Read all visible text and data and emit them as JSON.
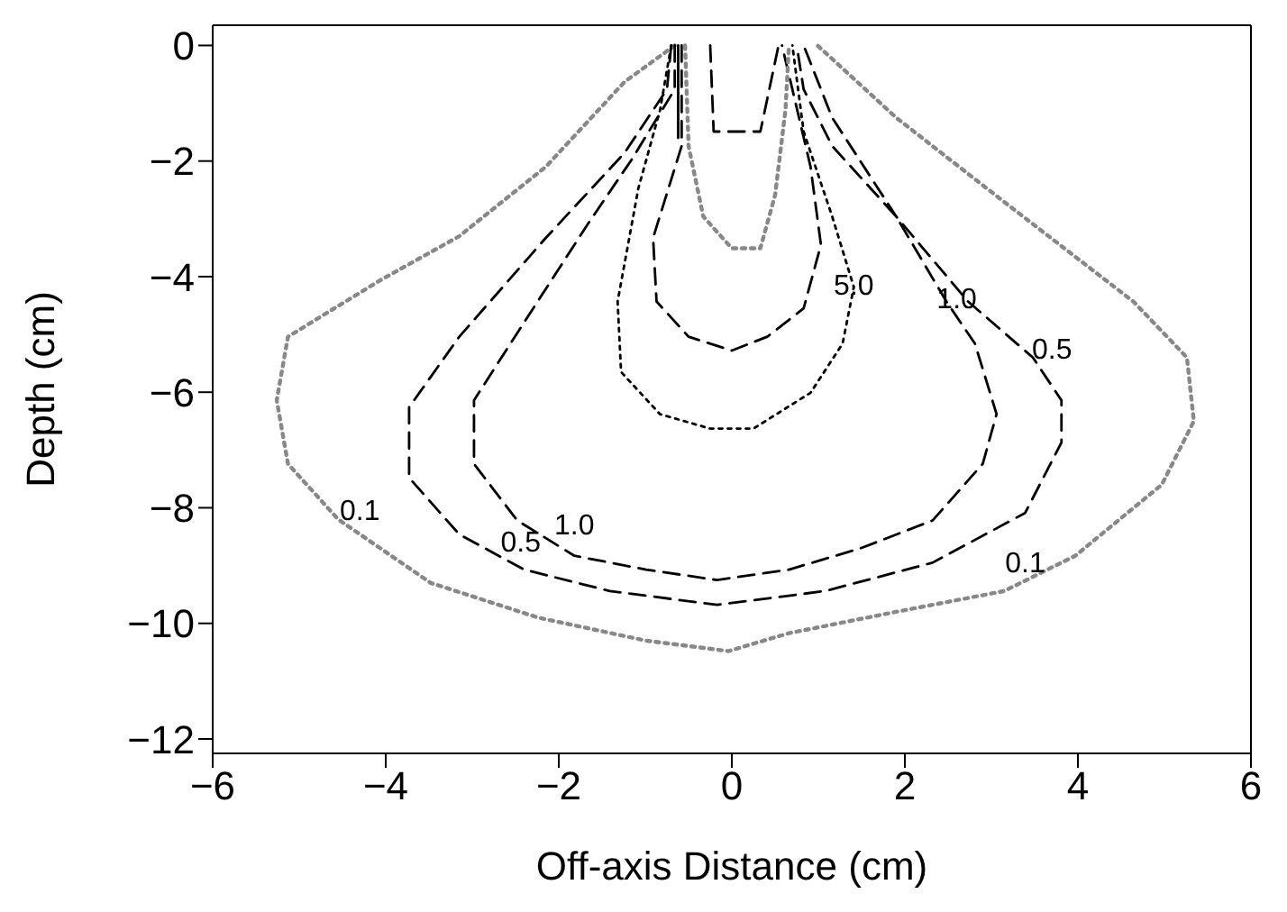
{
  "chart_data": {
    "type": "line",
    "xlabel": "Off-axis Distance (cm)",
    "ylabel": "Depth (cm)",
    "xlim": [
      -6,
      6
    ],
    "xticks": [
      -6,
      -4,
      -2,
      0,
      2,
      4,
      6
    ],
    "ylim": [
      -12.25,
      0.35
    ],
    "yticks": [
      -12,
      -10,
      -8,
      -6,
      -4,
      -2,
      0
    ],
    "marker": "none",
    "series": [
      {
        "color": "#888888",
        "line_style": "dotted",
        "x": [
          -0.66,
          -1.24,
          -2.15,
          -3.15,
          -4.06,
          -5.13,
          -5.26,
          -5.13,
          -4.55,
          -3.48,
          -2.24,
          -0.99,
          -0.04,
          0.66,
          1.9,
          3.15,
          3.97,
          4.97,
          5.34,
          5.26,
          4.64,
          3.15,
          1.9,
          0.99
        ],
        "values": [
          0,
          -0.63,
          -2.1,
          -3.3,
          -4.06,
          -5.04,
          -6.14,
          -7.24,
          -8.2,
          -9.3,
          -9.9,
          -10.3,
          -10.48,
          -10.17,
          -9.8,
          -9.44,
          -8.83,
          -7.6,
          -6.5,
          -5.4,
          -4.43,
          -2.71,
          -1.25,
          0
        ]
      },
      {
        "color": "#000000",
        "line_style": "dashed",
        "x": [
          -0.7,
          -0.75,
          -1.24,
          -2.15,
          -3.15,
          -3.73,
          -3.73,
          -3.15,
          -2.4,
          -1.41,
          -0.17,
          1.08,
          2.32,
          3.39,
          3.81,
          3.81,
          3.48,
          2.73,
          1.9,
          1.16,
          0.83
        ],
        "values": [
          0,
          -0.76,
          -1.86,
          -3.33,
          -5.04,
          -6.26,
          -7.48,
          -8.46,
          -9.07,
          -9.44,
          -9.68,
          -9.44,
          -8.95,
          -8.09,
          -6.87,
          -6.14,
          -5.4,
          -4.43,
          -2.96,
          -1.25,
          0
        ]
      },
      {
        "color": "#000000",
        "line_style": "dashed",
        "x": [
          -0.66,
          -0.66,
          -1.16,
          -1.66,
          -2.4,
          -2.98,
          -2.98,
          -2.48,
          -1.82,
          -0.99,
          -0.17,
          0.66,
          1.49,
          2.32,
          2.9,
          3.06,
          2.81,
          2.48,
          1.9,
          1.16,
          0.83,
          0.75
        ],
        "values": [
          0,
          -0.76,
          -1.98,
          -3.08,
          -4.79,
          -6.14,
          -7.24,
          -8.22,
          -8.83,
          -9.07,
          -9.25,
          -9.07,
          -8.7,
          -8.22,
          -7.24,
          -6.38,
          -5.16,
          -4.43,
          -2.96,
          -1.74,
          -0.76,
          0
        ]
      },
      {
        "color": "#000000",
        "line_style": "dotted",
        "x": [
          -0.7,
          -0.83,
          -1.08,
          -1.32,
          -1.28,
          -0.83,
          -0.25,
          0.25,
          0.91,
          1.28,
          1.41,
          1.16,
          0.83,
          0.7
        ],
        "values": [
          0,
          -1.12,
          -2.47,
          -4.43,
          -5.65,
          -6.38,
          -6.63,
          -6.63,
          -6.01,
          -5.16,
          -4.18,
          -2.96,
          -1.49,
          0
        ]
      },
      {
        "color": "#000000",
        "line_style": "dashed",
        "x": [
          -0.58,
          -0.58,
          -0.91,
          -0.87,
          -0.5,
          0,
          0.41,
          0.83,
          1.03,
          0.91,
          0.7,
          0.58
        ],
        "values": [
          0,
          -1.74,
          -3.33,
          -4.43,
          -5.04,
          -5.28,
          -5.04,
          -4.55,
          -3.45,
          -2.1,
          -0.76,
          0
        ]
      },
      {
        "color": "#888888",
        "line_style": "dotted",
        "x": [
          -0.54,
          -0.5,
          -0.33,
          0,
          0.33,
          0.5,
          0.62,
          0.66
        ],
        "values": [
          0,
          -1.74,
          -2.96,
          -3.51,
          -3.51,
          -2.59,
          -1.12,
          0
        ]
      },
      {
        "color": "#000000",
        "line_style": "dashed",
        "x": [
          -0.25,
          -0.21,
          0.33,
          0.54
        ],
        "values": [
          0,
          -1.49,
          -1.49,
          0
        ]
      },
      {
        "color": "#000000",
        "line_style": "solid",
        "x": [
          -0.62,
          -0.62
        ],
        "values": [
          0,
          -1.6
        ]
      }
    ],
    "annotations": [
      {
        "text": "0.1",
        "x": -4.3,
        "y": -8.4
      },
      {
        "text": "0.1",
        "x": 3.39,
        "y": -9.3
      },
      {
        "text": "0.5",
        "x": -2.44,
        "y": -8.95
      },
      {
        "text": "0.5",
        "x": 3.7,
        "y": -5.6
      },
      {
        "text": "1.0",
        "x": -1.82,
        "y": -8.64
      },
      {
        "text": "1.0",
        "x": 2.6,
        "y": -4.73
      },
      {
        "text": "5.0",
        "x": 1.41,
        "y": -4.5
      }
    ]
  }
}
